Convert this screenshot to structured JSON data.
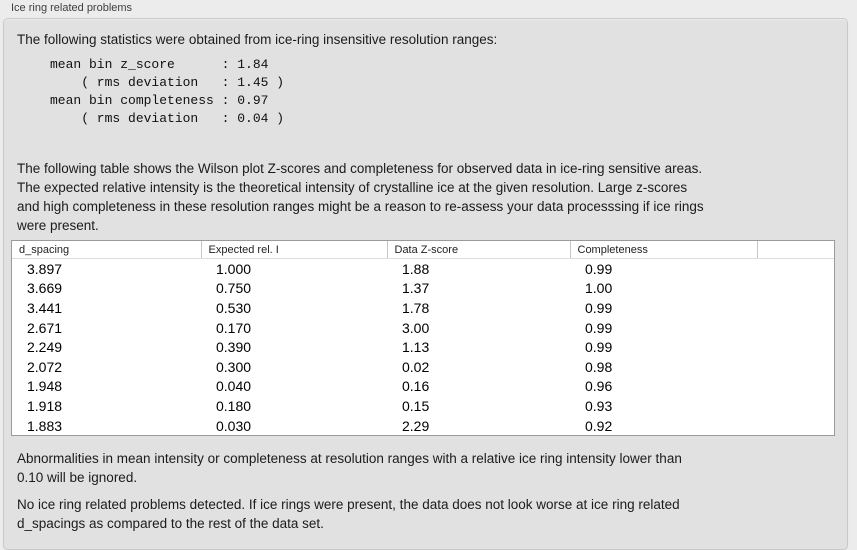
{
  "panel": {
    "title": "Ice ring related problems",
    "intro": "The following statistics were obtained from ice-ring insensitive resolution ranges:"
  },
  "stats": {
    "lines": [
      "mean bin z_score      : 1.84",
      "    ( rms deviation   : 1.45 )",
      "mean bin completeness : 0.97",
      "    ( rms deviation   : 0.04 )"
    ],
    "mean_bin_z_score": 1.84,
    "z_score_rms_deviation": 1.45,
    "mean_bin_completeness": 0.97,
    "completeness_rms_deviation": 0.04
  },
  "description": {
    "lines": [
      "The following table shows the Wilson plot Z-scores and completeness for observed data in ice-ring sensitive areas.",
      "The expected relative intensity is the theoretical intensity of crystalline ice at the given resolution. Large z-scores",
      "and high completeness in these resolution ranges might be a reason to re-assess your data processsing if ice rings",
      "were present."
    ]
  },
  "table": {
    "columns": [
      "d_spacing",
      "Expected rel. I",
      "Data Z-score",
      "Completeness"
    ],
    "rows": [
      [
        "3.897",
        "1.000",
        "1.88",
        "0.99"
      ],
      [
        "3.669",
        "0.750",
        "1.37",
        "1.00"
      ],
      [
        "3.441",
        "0.530",
        "1.78",
        "0.99"
      ],
      [
        "2.671",
        "0.170",
        "3.00",
        "0.99"
      ],
      [
        "2.249",
        "0.390",
        "1.13",
        "0.99"
      ],
      [
        "2.072",
        "0.300",
        "0.02",
        "0.98"
      ],
      [
        "1.948",
        "0.040",
        "0.16",
        "0.96"
      ],
      [
        "1.918",
        "0.180",
        "0.15",
        "0.93"
      ],
      [
        "1.883",
        "0.030",
        "2.29",
        "0.92"
      ]
    ]
  },
  "notes": {
    "ignore_rule": {
      "lines": [
        "Abnormalities in mean intensity or completeness at resolution ranges with a relative ice ring intensity lower than",
        "0.10 will be ignored."
      ]
    },
    "verdict": {
      "lines": [
        "No ice ring related problems detected. If ice rings were present, the data does not look worse at ice ring related",
        "d_spacings as compared to the rest of the data set."
      ]
    }
  },
  "colors": {
    "window_bg": "#ececec",
    "panel_bg": "#e1e1e1",
    "panel_border": "#c9c9c9",
    "table_bg": "#ffffff",
    "table_border": "#9a9a9a",
    "text": "#1b1b1b"
  }
}
